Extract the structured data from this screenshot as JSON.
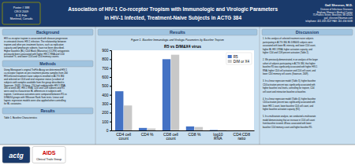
{
  "chart_data": {
    "type": "bar",
    "title": "R5 vs D/M&X4 virus",
    "categories": [
      "CD4 cell\ncount",
      "CD4 %",
      "CD8 cell\ncount",
      "CD8 %",
      "log10\nRNA",
      "CD4:CD8\nratio"
    ],
    "series": [
      {
        "name": "R5",
        "color": "#4472c4",
        "values": [
          440,
          28,
          800,
          45,
          4.8,
          0.6
        ]
      },
      {
        "name": "D/M or X4",
        "color": "#c8c8c8",
        "values": [
          280,
          22,
          850,
          38,
          4.9,
          0.45
        ]
      }
    ],
    "ylim": [
      0,
      900
    ],
    "yticks": [
      0,
      100,
      200,
      300,
      400,
      500,
      600,
      700,
      800,
      900
    ],
    "legend": "upper right",
    "grid": false
  },
  "page": {
    "title": [
      "Association of HIV-1 Co-receptor Tropism with Immunologic and Virologic Parameters",
      "in HIV-1 Infected, Treatment-Naive Subjects in ACTG 384"
    ],
    "poster_info": "Poster # 388\nCROI 2009\n8-11 Feb\nMontreal, Canada",
    "contact_name": "Gail Shevron, M.D.",
    "contact_info": "Division of Infectious Diseases\nBrigham Women's Medical Center\n75 Francis Street, Brockton, MI 02625\ngail_shevron@bwman.com\ntelephone: 401 459 2627   FAX: 401 456 6638",
    "sections": [
      {
        "title": "Background",
        "text": "HIV co-receptor tropism is associated with disease progression\nin untreated chronic HIV-1 infection. The relationship between\ntropism and other pre-treatment factors, such as replication\ncapacity and lymphocyte subsets, have not been described.\nHigher baseline (BL) CD4 Black (Maraviroc) (CCRS) antagonists\npreviously been associated with higher HIV-1 RNA and CD4\nactivation %, and lower CD4 and CD4 memory counts."
      },
      {
        "title": "Methods",
        "text": "Using Monogram's original TroFile Assay we determined HIV-1\nco-receptor tropism on pre-treatment plasma samples from 200\nHIV-infected treatment naive subjects enrolled in ACTG 384\nand selected on CD4 and viral response status (a subset of\nsubjects with samples available from the group described in\nSwanson, 2009). Of these, 210 had undetectable HIV-1 RNA,\n180 at week 48). HIV-1 RNA, CD4 and CD8 subsets and R5\nwere used to characterize BL differences in subjects with\ntropism. Continuous outcomes were compared between R5 vs\nD/M&X4 groups with Wilcoxon Rank Sum tests. Linear and\nlogistic regression models were also applied when controlling\nfor BL covariates."
      },
      {
        "title": "Results",
        "text": "Table 1. Baseline Characteristics"
      },
      {
        "title": "Discussion",
        "text": "1. In this analysis of selected treatment-naive subjects\nparticipating in ACTG 384, BL D/M&X4 subjects were\nassociated with lower BL intensity, and lower CD4 count,\nhigher BL HIV-1 RNA, higher activation capacity, and\nhigher CD4 and CD8 percent activation (Table 2).\n\n2. We previously demonstrated, in an analysis of the larger\ncohort of subjects participating in ACTG 384, that higher\nbaseline R5 was significantly associated with higher HIV-1\nRNA, higher CD4 cell activation and CD4 cell count, and\nlower CD4 memory cell counts (Swanson, 2009).\n\n3. In a linear regression model (Table 3), higher baseline\nCD4 activation percent was significantly associated with\nhigher baseline viral levels, controlling for tropism, CD4\ncell count and interaction baseline at baseline.\n\n4. In a linear regression model (Table 4), higher baseline\nCD4 activation percent was significantly associated with\nlower HIV-1 count, lower baseline CD4 cell count, and\nhigher baseline activation capacity (R2).\n\n5. In a multivariate analysis, we conducted a multivariate\nmodel demonstrating that an increase in CD4 cell count\nfrom baseline to week 48 was associated with lower\nbaseline CD4 memory count and higher baseline R5."
      }
    ],
    "figure_title": "Figure 1. Baseline Immunologic and Virologic Parameters by Baseline Tropism",
    "logos": [
      "actg",
      "AIDS",
      "Clinical Trials Group"
    ]
  }
}
